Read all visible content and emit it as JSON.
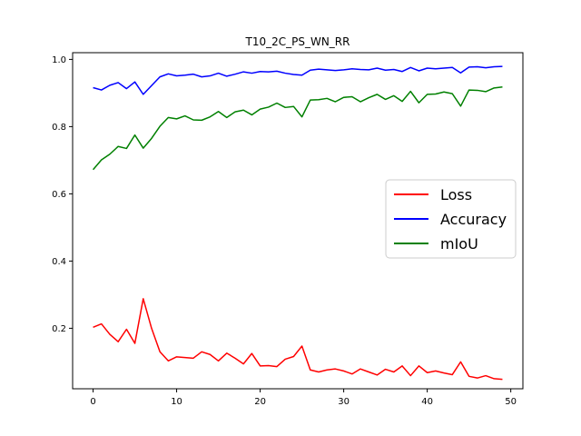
{
  "chart_data": {
    "type": "line",
    "title": "T10_2C_PS_WN_RR",
    "xlabel": "",
    "ylabel": "",
    "xlim": [
      -2.45,
      51.45
    ],
    "ylim": [
      0.02,
      1.02
    ],
    "xticks": [
      0,
      10,
      20,
      30,
      40,
      50
    ],
    "yticks": [
      0.2,
      0.4,
      0.6,
      0.8,
      1.0
    ],
    "xtick_labels": [
      "0",
      "10",
      "20",
      "30",
      "40",
      "50"
    ],
    "ytick_labels": [
      "0.2",
      "0.4",
      "0.6",
      "0.8",
      "1.0"
    ],
    "grid": false,
    "legend_position": "center-right",
    "x": [
      0,
      1,
      2,
      3,
      4,
      5,
      6,
      7,
      8,
      9,
      10,
      11,
      12,
      13,
      14,
      15,
      16,
      17,
      18,
      19,
      20,
      21,
      22,
      23,
      24,
      25,
      26,
      27,
      28,
      29,
      30,
      31,
      32,
      33,
      34,
      35,
      36,
      37,
      38,
      39,
      40,
      41,
      42,
      43,
      44,
      45,
      46,
      47,
      48,
      49
    ],
    "series": [
      {
        "name": "Loss",
        "color": "#ff0000",
        "values": [
          0.203,
          0.213,
          0.182,
          0.16,
          0.197,
          0.155,
          0.288,
          0.2,
          0.13,
          0.103,
          0.115,
          0.113,
          0.111,
          0.13,
          0.122,
          0.103,
          0.126,
          0.111,
          0.094,
          0.125,
          0.088,
          0.089,
          0.086,
          0.108,
          0.116,
          0.147,
          0.076,
          0.07,
          0.076,
          0.079,
          0.073,
          0.064,
          0.079,
          0.07,
          0.061,
          0.078,
          0.07,
          0.088,
          0.059,
          0.088,
          0.068,
          0.073,
          0.067,
          0.062,
          0.1,
          0.057,
          0.052,
          0.059,
          0.05,
          0.048
        ]
      },
      {
        "name": "Accuracy",
        "color": "#0000ff",
        "values": [
          0.916,
          0.909,
          0.923,
          0.931,
          0.913,
          0.933,
          0.896,
          0.922,
          0.948,
          0.957,
          0.951,
          0.953,
          0.956,
          0.948,
          0.951,
          0.959,
          0.95,
          0.956,
          0.963,
          0.959,
          0.964,
          0.963,
          0.965,
          0.959,
          0.955,
          0.953,
          0.968,
          0.971,
          0.969,
          0.967,
          0.969,
          0.972,
          0.97,
          0.969,
          0.974,
          0.968,
          0.97,
          0.964,
          0.976,
          0.966,
          0.974,
          0.972,
          0.974,
          0.976,
          0.96,
          0.977,
          0.978,
          0.975,
          0.978,
          0.979
        ]
      },
      {
        "name": "mIoU",
        "color": "#008000",
        "values": [
          0.672,
          0.701,
          0.718,
          0.741,
          0.735,
          0.775,
          0.736,
          0.765,
          0.801,
          0.827,
          0.823,
          0.832,
          0.82,
          0.819,
          0.829,
          0.845,
          0.827,
          0.844,
          0.849,
          0.835,
          0.852,
          0.858,
          0.87,
          0.857,
          0.86,
          0.829,
          0.879,
          0.88,
          0.884,
          0.874,
          0.887,
          0.889,
          0.874,
          0.886,
          0.896,
          0.881,
          0.892,
          0.875,
          0.905,
          0.871,
          0.896,
          0.897,
          0.903,
          0.898,
          0.861,
          0.909,
          0.908,
          0.904,
          0.915,
          0.918
        ]
      }
    ]
  }
}
